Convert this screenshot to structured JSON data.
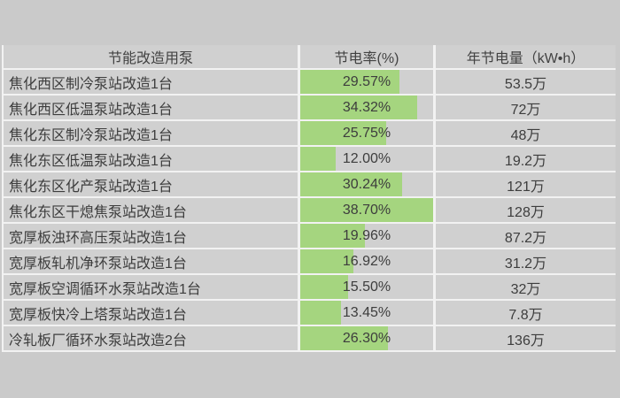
{
  "page": {
    "background": "#cacaca",
    "cell_fill": "#d0d0d0",
    "gridline_color": "#f2f2f2",
    "bar_color": "#a5d57f",
    "text_color": "#3d3d3d"
  },
  "table": {
    "columns": [
      {
        "label": "节能改造用泵"
      },
      {
        "label": "节电率(%)"
      },
      {
        "label": "年节电量（kW•h）"
      }
    ],
    "rows": [
      {
        "pump": "焦化西区制冷泵站改造1台",
        "rate": "29.57%",
        "rate_value": 29.57,
        "annual": "53.5万"
      },
      {
        "pump": "焦化西区低温泵站改造1台",
        "rate": "34.32%",
        "rate_value": 34.32,
        "annual": "72万"
      },
      {
        "pump": "焦化东区制冷泵站改造1台",
        "rate": "25.75%",
        "rate_value": 25.75,
        "annual": "48万"
      },
      {
        "pump": "焦化东区低温泵站改造1台",
        "rate": "12.00%",
        "rate_value": 12.0,
        "annual": "19.2万"
      },
      {
        "pump": "焦化东区化产泵站改造1台",
        "rate": "30.24%",
        "rate_value": 30.24,
        "annual": "121万"
      },
      {
        "pump": "焦化东区干熄焦泵站改造1台",
        "rate": "38.70%",
        "rate_value": 38.7,
        "annual": "128万"
      },
      {
        "pump": "宽厚板浊环高压泵站改造1台",
        "rate": "19.96%",
        "rate_value": 19.96,
        "annual": "87.2万"
      },
      {
        "pump": "宽厚板轧机净环泵站改造1台",
        "rate": "16.92%",
        "rate_value": 16.92,
        "annual": "31.2万"
      },
      {
        "pump": "宽厚板空调循环水泵站改造1台",
        "rate": "15.50%",
        "rate_value": 15.5,
        "annual": "32万"
      },
      {
        "pump": "宽厚板快冷上塔泵站改造1台",
        "rate": "13.45%",
        "rate_value": 13.45,
        "annual": "7.8万"
      },
      {
        "pump": "冷轧板厂循环水泵站改造2台",
        "rate": "26.30%",
        "rate_value": 26.3,
        "annual": "136万"
      }
    ]
  },
  "chart_data": {
    "type": "table",
    "title": "",
    "columns": [
      "节能改造用泵",
      "节电率(%)",
      "年节电量（kW•h）"
    ],
    "categories": [
      "焦化西区制冷泵站改造1台",
      "焦化西区低温泵站改造1台",
      "焦化东区制冷泵站改造1台",
      "焦化东区低温泵站改造1台",
      "焦化东区化产泵站改造1台",
      "焦化东区干熄焦泵站改造1台",
      "宽厚板浊环高压泵站改造1台",
      "宽厚板轧机净环泵站改造1台",
      "宽厚板空调循环水泵站改造1台",
      "宽厚板快冷上塔泵站改造1台",
      "冷轧板厂循环水泵站改造2台"
    ],
    "series": [
      {
        "name": "节电率(%)",
        "unit": "%",
        "display": "data-bar",
        "values": [
          29.57,
          34.32,
          25.75,
          12.0,
          30.24,
          38.7,
          19.96,
          16.92,
          15.5,
          13.45,
          26.3
        ]
      },
      {
        "name": "年节电量（kW•h）",
        "unit": "万kW•h",
        "values": [
          53.5,
          72,
          48,
          19.2,
          121,
          128,
          87.2,
          31.2,
          32,
          7.8,
          136
        ]
      }
    ],
    "bar_scale": {
      "min_value": 12.0,
      "max_value": 38.7,
      "min_bar_fraction": 0.267,
      "max_bar_fraction": 1.0
    },
    "bar_color": "#a5d57f",
    "legend_position": "none",
    "grid": true
  }
}
